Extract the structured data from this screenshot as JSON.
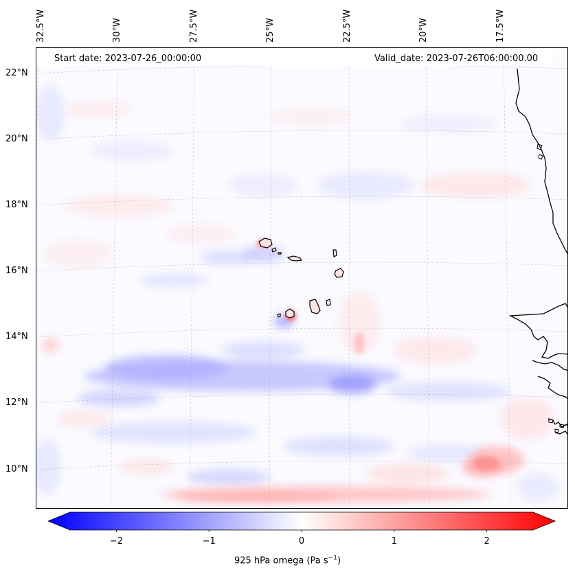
{
  "header": {
    "start_date": "Start date: 2023-07-26_00:00:00",
    "valid_date": "Valid_date: 2023-07-26T06:00:00.00"
  },
  "map": {
    "projection": "lambert-conformal",
    "lon_range": [
      -33.2,
      -15.8
    ],
    "lat_range": [
      8.9,
      22.8
    ],
    "lat_labels": [
      "22°N",
      "20°N",
      "18°N",
      "16°N",
      "14°N",
      "12°N",
      "10°N"
    ],
    "lon_labels": [
      "32.5°W",
      "30°W",
      "27.5°W",
      "25°W",
      "22.5°W",
      "20°W",
      "17.5°W"
    ],
    "features": [
      "Cape Verde islands",
      "West African coastline"
    ],
    "gridlines": true
  },
  "colorbar": {
    "cmap": "bwr",
    "vmin": -2.5,
    "vmax": 2.5,
    "extend": "both",
    "ticks": [
      "−2",
      "−1",
      "0",
      "1",
      "2"
    ],
    "label_main": "925 hPa omega (Pa s",
    "label_sup": "−1",
    "label_end": ")",
    "colors": {
      "negative": "#0000ff",
      "zero": "#ffffff",
      "positive": "#ff0000"
    }
  }
}
